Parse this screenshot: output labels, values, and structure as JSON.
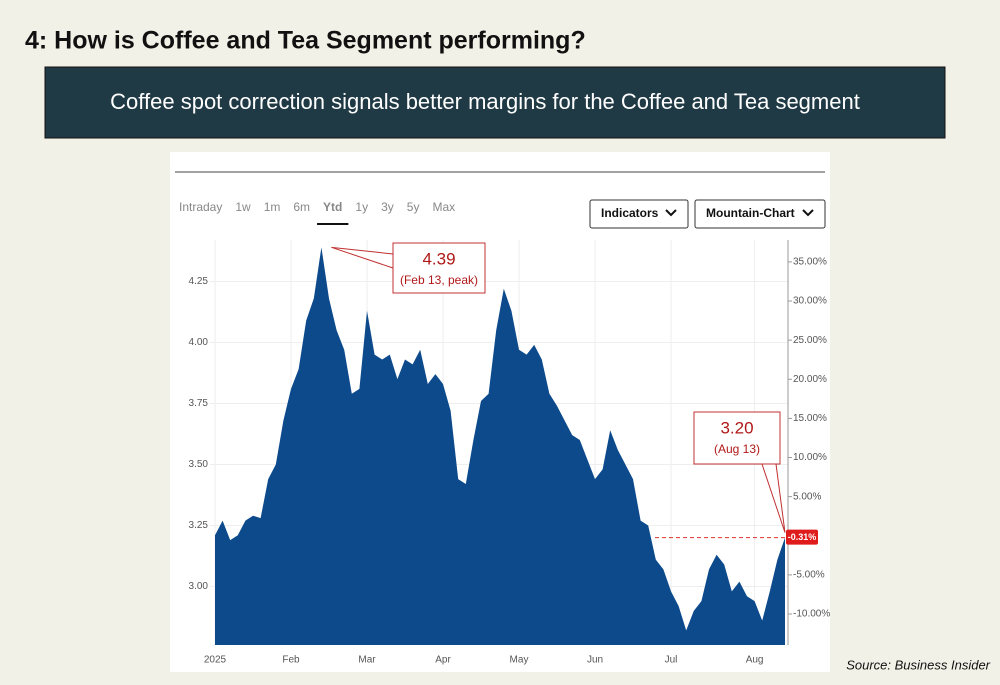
{
  "slide": {
    "title": "4: How is Coffee and Tea Segment performing?",
    "banner": "Coffee spot correction signals better margins for the Coffee and Tea segment",
    "source": "Source: Business Insider"
  },
  "toolbar": {
    "tabs": [
      "Intraday",
      "1w",
      "1m",
      "6m",
      "Ytd",
      "1y",
      "3y",
      "5y",
      "Max"
    ],
    "selected_tab": 4,
    "buttons": [
      "Indicators",
      "Mountain-Chart"
    ]
  },
  "chart_data": {
    "type": "area",
    "color": "#0c4a8c",
    "grid": true,
    "categories": [
      "2025",
      null,
      null,
      null,
      null,
      null,
      null,
      null,
      null,
      null,
      "Feb",
      null,
      null,
      null,
      null,
      null,
      null,
      null,
      null,
      null,
      "Mar",
      null,
      null,
      null,
      null,
      null,
      null,
      null,
      null,
      null,
      "Apr",
      null,
      null,
      null,
      null,
      null,
      null,
      null,
      null,
      null,
      "May",
      null,
      null,
      null,
      null,
      null,
      null,
      null,
      null,
      null,
      "Jun",
      null,
      null,
      null,
      null,
      null,
      null,
      null,
      null,
      null,
      "Jul",
      null,
      null,
      null,
      null,
      null,
      null,
      null,
      null,
      null,
      null,
      "Aug",
      null,
      null,
      null,
      null
    ],
    "values": [
      3.21,
      3.27,
      3.19,
      3.21,
      3.27,
      3.29,
      3.28,
      3.44,
      3.5,
      3.68,
      3.81,
      3.89,
      4.09,
      4.18,
      4.39,
      4.18,
      4.05,
      3.97,
      3.79,
      3.81,
      4.13,
      3.95,
      3.93,
      3.95,
      3.85,
      3.93,
      3.91,
      3.97,
      3.83,
      3.87,
      3.83,
      3.72,
      3.44,
      3.42,
      3.6,
      3.76,
      3.79,
      4.05,
      4.22,
      4.13,
      3.97,
      3.95,
      3.99,
      3.93,
      3.79,
      3.74,
      3.68,
      3.62,
      3.6,
      3.52,
      3.44,
      3.48,
      3.64,
      3.56,
      3.5,
      3.44,
      3.27,
      3.25,
      3.11,
      3.07,
      2.98,
      2.92,
      2.82,
      2.9,
      2.94,
      3.07,
      3.13,
      3.09,
      2.98,
      3.02,
      2.96,
      2.94,
      2.86,
      2.98,
      3.11,
      3.2
    ],
    "ylim": [
      2.76,
      4.42
    ],
    "yticks": [
      {
        "value": 3,
        "label": "3.00"
      },
      {
        "value": 3.25,
        "label": "3.25"
      },
      {
        "value": 3.5,
        "label": "3.50"
      },
      {
        "value": 3.75,
        "label": "3.75"
      },
      {
        "value": 4,
        "label": "4.00"
      },
      {
        "value": 4.25,
        "label": "4.25"
      }
    ],
    "y2lim": [
      -13.96,
      37.8
    ],
    "y2ticks": [
      {
        "value": -10,
        "label": "-10.00%"
      },
      {
        "value": -5,
        "label": "-5.00%"
      },
      {
        "value": 5,
        "label": "5.00%"
      },
      {
        "value": 10,
        "label": "10.00%"
      },
      {
        "value": 15,
        "label": "15.00%"
      },
      {
        "value": 20,
        "label": "20.00%"
      },
      {
        "value": 25,
        "label": "25.00%"
      },
      {
        "value": 30,
        "label": "30.00%"
      },
      {
        "value": 35,
        "label": "35.00%"
      }
    ],
    "current_change": {
      "value": -0.31,
      "label": "-0.31%"
    },
    "annotations": [
      {
        "value": 4.39,
        "label": "4.39",
        "note": "(Feb 13, peak)",
        "index": 14
      },
      {
        "value": 3.2,
        "label": "3.20",
        "note": "(Aug 13)",
        "index": 75
      }
    ]
  }
}
